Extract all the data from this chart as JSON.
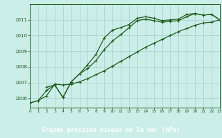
{
  "title": "Graphe pression niveau de la mer (hPa)",
  "bg_color": "#cceee8",
  "grid_color": "#aad4ce",
  "line_color": "#1a5c1a",
  "label_bg": "#2d6b2d",
  "label_fg": "#ffffff",
  "marker": "+",
  "xlim": [
    0,
    23
  ],
  "ylim": [
    1005.4,
    1012.0
  ],
  "xticks": [
    0,
    1,
    2,
    3,
    4,
    5,
    6,
    7,
    8,
    9,
    10,
    11,
    12,
    13,
    14,
    15,
    16,
    17,
    18,
    19,
    20,
    21,
    22,
    23
  ],
  "yticks": [
    1006,
    1007,
    1008,
    1009,
    1010,
    1011
  ],
  "series1_x": [
    0,
    1,
    2,
    3,
    4,
    5,
    6,
    7,
    8,
    9,
    10,
    11,
    12,
    13,
    14,
    15,
    16,
    17,
    18,
    19,
    20,
    21,
    22,
    23
  ],
  "series1_y": [
    1005.7,
    1005.85,
    1006.5,
    1006.85,
    1006.05,
    1007.05,
    1007.55,
    1008.15,
    1008.8,
    1009.85,
    1010.35,
    1010.5,
    1010.7,
    1011.1,
    1011.2,
    1011.1,
    1010.95,
    1011.0,
    1011.05,
    1011.35,
    1011.4,
    1011.3,
    1011.35,
    1011.0
  ],
  "series2_x": [
    2,
    3,
    4,
    5,
    6,
    7,
    8,
    9,
    10,
    11,
    12,
    13,
    14,
    15,
    16,
    17,
    18,
    19,
    20,
    21,
    22,
    23
  ],
  "series2_y": [
    1006.7,
    1006.85,
    1006.05,
    1007.05,
    1007.55,
    1007.9,
    1008.4,
    1009.1,
    1009.65,
    1010.05,
    1010.5,
    1010.95,
    1011.05,
    1010.95,
    1010.85,
    1010.9,
    1010.95,
    1011.2,
    1011.4,
    1011.3,
    1011.35,
    1011.0
  ],
  "series3_x": [
    0,
    1,
    2,
    3,
    4,
    5,
    6,
    7,
    8,
    9,
    10,
    11,
    12,
    13,
    14,
    15,
    16,
    17,
    18,
    19,
    20,
    21,
    22,
    23
  ],
  "series3_y": [
    1005.7,
    1005.85,
    1006.15,
    1006.9,
    1006.85,
    1006.9,
    1007.05,
    1007.25,
    1007.5,
    1007.75,
    1008.05,
    1008.35,
    1008.65,
    1008.95,
    1009.25,
    1009.5,
    1009.75,
    1010.0,
    1010.25,
    1010.45,
    1010.65,
    1010.8,
    1010.85,
    1011.0
  ]
}
